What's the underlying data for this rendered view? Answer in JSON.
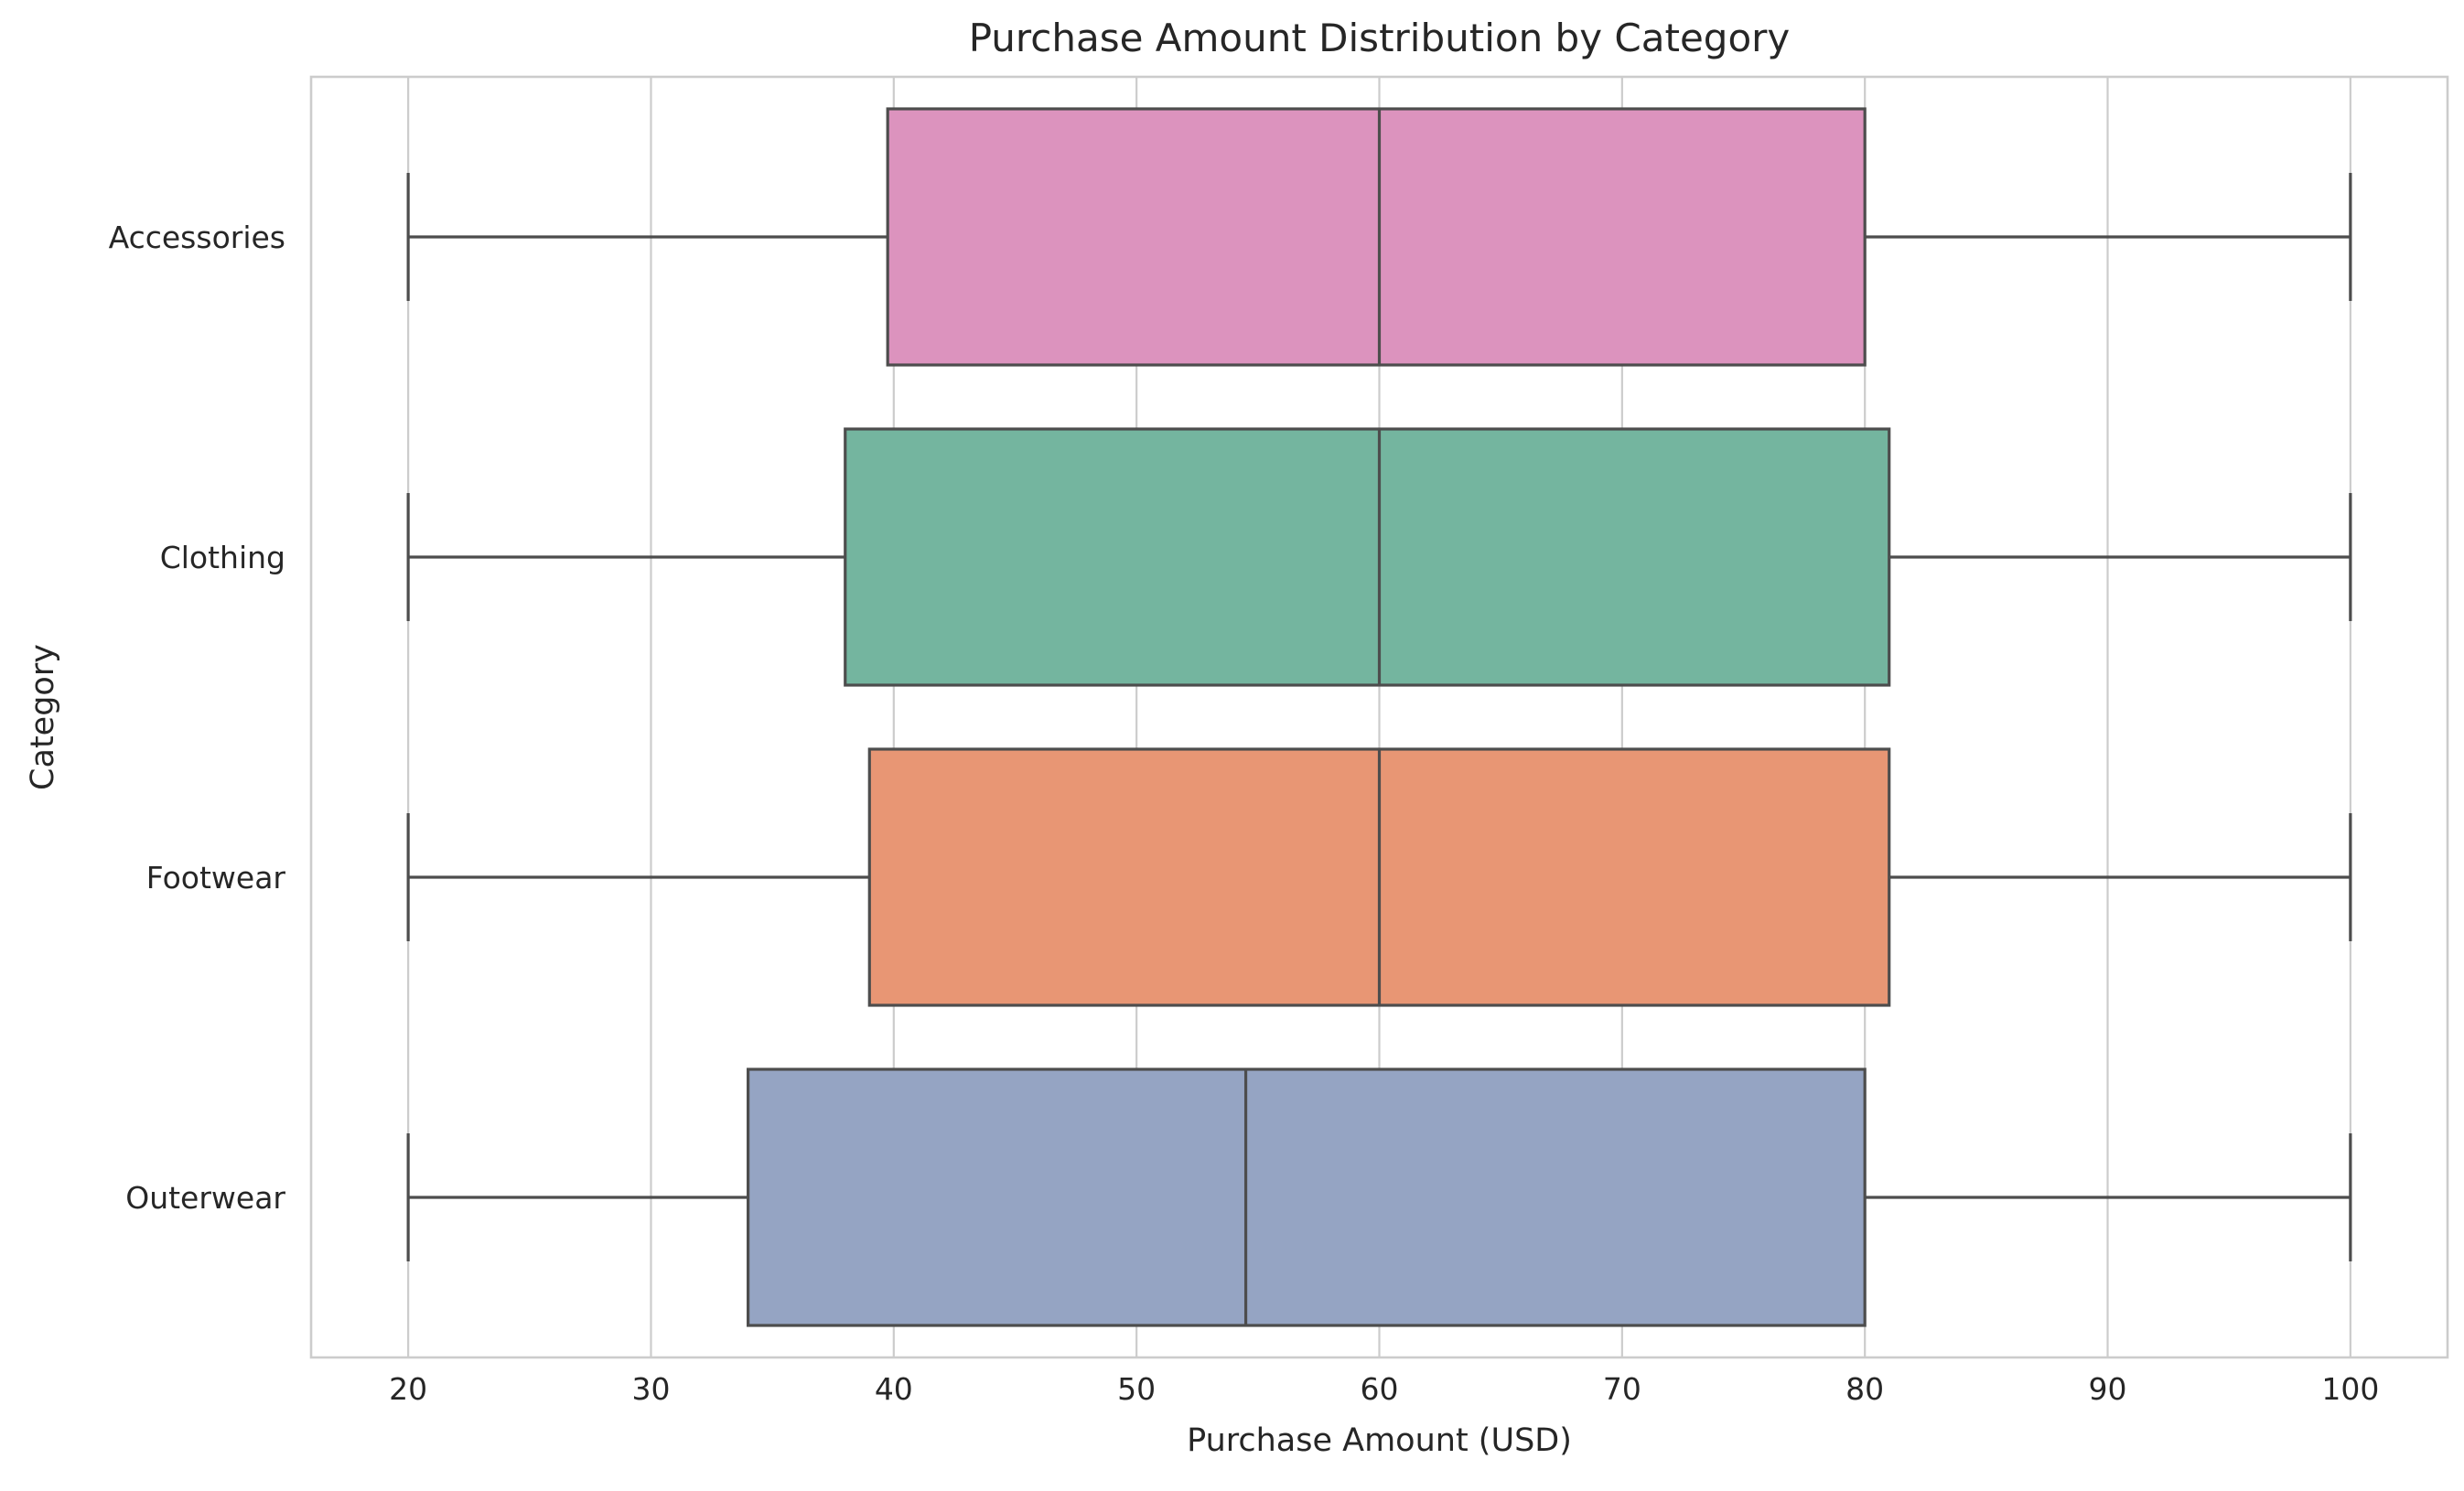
{
  "chart_data": {
    "type": "boxplot",
    "orientation": "horizontal",
    "title": "Purchase Amount Distribution by Category",
    "xlabel": "Purchase Amount (USD)",
    "ylabel": "Category",
    "xlim": [
      16,
      104
    ],
    "xticks": [
      20,
      30,
      40,
      50,
      60,
      70,
      80,
      90,
      100
    ],
    "grid": true,
    "categories": [
      "Accessories",
      "Clothing",
      "Footwear",
      "Outerwear"
    ],
    "boxes": [
      {
        "category": "Accessories",
        "min": 20,
        "q1": 39.75,
        "median": 60,
        "q3": 80,
        "max": 100,
        "color": "#dc93be"
      },
      {
        "category": "Clothing",
        "min": 20,
        "q1": 38,
        "median": 60,
        "q3": 81,
        "max": 100,
        "color": "#74b59f"
      },
      {
        "category": "Footwear",
        "min": 20,
        "q1": 39,
        "median": 60,
        "q3": 81,
        "max": 100,
        "color": "#e89674"
      },
      {
        "category": "Outerwear",
        "min": 20,
        "q1": 34,
        "median": 54.5,
        "q3": 80,
        "max": 100,
        "color": "#95a4c3"
      }
    ]
  }
}
